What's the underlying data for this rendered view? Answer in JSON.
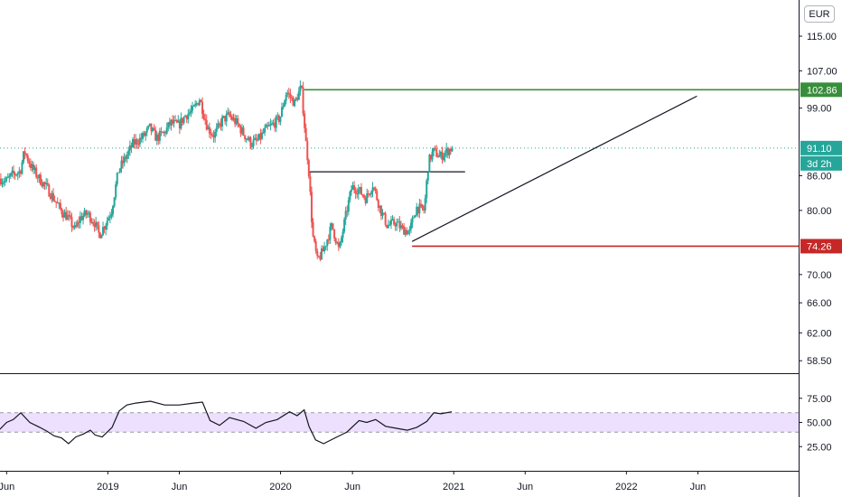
{
  "currency_button": "EUR",
  "colors": {
    "up": "#26a69a",
    "down": "#ef5350",
    "resistance": "#388e3c",
    "support": "#c62828",
    "last_price": "#26a69a",
    "rsi_line": "#131722",
    "rsi_band": "#ede0ff"
  },
  "chart_data": [
    {
      "type": "candlestick",
      "title": "",
      "y_axis": {
        "scale": "log",
        "ticks": [
          "115.00",
          "107.00",
          "99.00",
          "86.00",
          "80.00",
          "70.00",
          "66.00",
          "62.00",
          "58.50"
        ],
        "range": [
          57,
          124
        ]
      },
      "x_axis": {
        "range": [
          "2018-05-18",
          "2022-12-31"
        ],
        "ticks": [
          {
            "date": "2018-06-01",
            "label": "Jun"
          },
          {
            "date": "2019-01-01",
            "label": "2019"
          },
          {
            "date": "2019-06-01",
            "label": "Jun"
          },
          {
            "date": "2020-01-01",
            "label": "2020"
          },
          {
            "date": "2020-06-01",
            "label": "Jun"
          },
          {
            "date": "2021-01-01",
            "label": "2021"
          },
          {
            "date": "2021-06-01",
            "label": "Jun"
          },
          {
            "date": "2022-01-01",
            "label": "2022"
          },
          {
            "date": "2022-06-01",
            "label": "Jun"
          }
        ]
      },
      "price_series": [
        [
          "2018-05-18",
          85.5
        ],
        [
          "2018-06-01",
          85.0
        ],
        [
          "2018-06-15",
          86.2
        ],
        [
          "2018-07-01",
          86.8
        ],
        [
          "2018-07-10",
          90.5
        ],
        [
          "2018-07-25",
          87.5
        ],
        [
          "2018-08-10",
          85.5
        ],
        [
          "2018-08-25",
          84.0
        ],
        [
          "2018-09-10",
          82.0
        ],
        [
          "2018-09-25",
          80.0
        ],
        [
          "2018-10-10",
          78.8
        ],
        [
          "2018-10-25",
          76.8
        ],
        [
          "2018-11-05",
          78.8
        ],
        [
          "2018-11-20",
          79.5
        ],
        [
          "2018-12-05",
          78.0
        ],
        [
          "2018-12-15",
          76.0
        ],
        [
          "2018-12-28",
          77.8
        ],
        [
          "2019-01-10",
          80.0
        ],
        [
          "2019-01-25",
          87.0
        ],
        [
          "2019-02-10",
          89.5
        ],
        [
          "2019-02-25",
          92.0
        ],
        [
          "2019-03-15",
          93.0
        ],
        [
          "2019-04-01",
          95.0
        ],
        [
          "2019-04-15",
          93.0
        ],
        [
          "2019-05-01",
          94.0
        ],
        [
          "2019-05-15",
          96.0
        ],
        [
          "2019-06-01",
          95.5
        ],
        [
          "2019-06-15",
          97.5
        ],
        [
          "2019-07-01",
          98.5
        ],
        [
          "2019-07-15",
          101.0
        ],
        [
          "2019-08-01",
          95.0
        ],
        [
          "2019-08-15",
          93.5
        ],
        [
          "2019-09-01",
          96.5
        ],
        [
          "2019-09-15",
          97.5
        ],
        [
          "2019-10-01",
          96.0
        ],
        [
          "2019-10-15",
          94.0
        ],
        [
          "2019-11-01",
          92.0
        ],
        [
          "2019-11-15",
          92.5
        ],
        [
          "2019-12-01",
          94.5
        ],
        [
          "2019-12-15",
          95.5
        ],
        [
          "2020-01-01",
          97.0
        ],
        [
          "2020-01-15",
          102.5
        ],
        [
          "2020-02-01",
          100.0
        ],
        [
          "2020-02-15",
          103.5
        ],
        [
          "2020-02-25",
          92.0
        ],
        [
          "2020-03-01",
          88.0
        ],
        [
          "2020-03-10",
          76.0
        ],
        [
          "2020-03-20",
          72.0
        ],
        [
          "2020-04-01",
          73.5
        ],
        [
          "2020-04-20",
          77.5
        ],
        [
          "2020-05-05",
          73.5
        ],
        [
          "2020-05-20",
          79.5
        ],
        [
          "2020-06-01",
          84.0
        ],
        [
          "2020-06-15",
          83.5
        ],
        [
          "2020-07-01",
          82.0
        ],
        [
          "2020-07-15",
          84.5
        ],
        [
          "2020-08-01",
          80.0
        ],
        [
          "2020-08-15",
          77.5
        ],
        [
          "2020-09-01",
          78.0
        ],
        [
          "2020-09-15",
          77.0
        ],
        [
          "2020-10-01",
          76.5
        ],
        [
          "2020-10-15",
          80.5
        ],
        [
          "2020-11-01",
          80.0
        ],
        [
          "2020-11-10",
          88.5
        ],
        [
          "2020-11-20",
          90.5
        ],
        [
          "2020-12-05",
          89.5
        ],
        [
          "2020-12-15",
          90.2
        ],
        [
          "2020-12-28",
          91.1
        ]
      ],
      "last_price": {
        "value": 91.1,
        "label": "91.10",
        "countdown": "3d 2h"
      },
      "horizontal_lines": [
        {
          "name": "resistance",
          "value": 102.86,
          "label": "102.86",
          "from": "2020-02-20"
        },
        {
          "name": "support",
          "value": 74.26,
          "label": "74.26",
          "from": "2020-10-05"
        },
        {
          "name": "neckline",
          "value": 86.7,
          "from": "2020-03-01",
          "to": "2021-01-25"
        }
      ],
      "trend_line": {
        "from": {
          "date": "2020-10-05",
          "value": 75.0
        },
        "to": {
          "date": "2022-05-30",
          "value": 101.5
        }
      }
    },
    {
      "type": "line",
      "title": "",
      "y_axis": {
        "ticks": [
          "75.00",
          "50.00",
          "25.00"
        ],
        "range": [
          0,
          100
        ]
      },
      "band": [
        40,
        60
      ],
      "rsi_series": [
        [
          "2018-05-18",
          43
        ],
        [
          "2018-06-01",
          50
        ],
        [
          "2018-06-15",
          53
        ],
        [
          "2018-07-01",
          60
        ],
        [
          "2018-07-20",
          50
        ],
        [
          "2018-08-10",
          45
        ],
        [
          "2018-08-25",
          41
        ],
        [
          "2018-09-10",
          36
        ],
        [
          "2018-09-25",
          34
        ],
        [
          "2018-10-10",
          28
        ],
        [
          "2018-10-25",
          35
        ],
        [
          "2018-11-10",
          38
        ],
        [
          "2018-11-25",
          42
        ],
        [
          "2018-12-05",
          37
        ],
        [
          "2018-12-20",
          35
        ],
        [
          "2019-01-10",
          45
        ],
        [
          "2019-01-25",
          62
        ],
        [
          "2019-02-10",
          68
        ],
        [
          "2019-03-01",
          70
        ],
        [
          "2019-04-01",
          72
        ],
        [
          "2019-05-01",
          68
        ],
        [
          "2019-06-01",
          68
        ],
        [
          "2019-07-01",
          70
        ],
        [
          "2019-07-20",
          71
        ],
        [
          "2019-08-05",
          52
        ],
        [
          "2019-08-25",
          47
        ],
        [
          "2019-09-15",
          55
        ],
        [
          "2019-10-15",
          51
        ],
        [
          "2019-11-10",
          44
        ],
        [
          "2019-12-01",
          50
        ],
        [
          "2019-12-25",
          53
        ],
        [
          "2020-01-20",
          61
        ],
        [
          "2020-02-05",
          57
        ],
        [
          "2020-02-20",
          63
        ],
        [
          "2020-03-01",
          46
        ],
        [
          "2020-03-15",
          32
        ],
        [
          "2020-04-01",
          28
        ],
        [
          "2020-04-25",
          34
        ],
        [
          "2020-05-20",
          40
        ],
        [
          "2020-06-15",
          52
        ],
        [
          "2020-07-01",
          50
        ],
        [
          "2020-07-20",
          53
        ],
        [
          "2020-08-10",
          46
        ],
        [
          "2020-09-01",
          44
        ],
        [
          "2020-09-25",
          42
        ],
        [
          "2020-10-15",
          45
        ],
        [
          "2020-11-05",
          51
        ],
        [
          "2020-11-20",
          60
        ],
        [
          "2020-12-05",
          59
        ],
        [
          "2020-12-28",
          61
        ]
      ]
    }
  ]
}
